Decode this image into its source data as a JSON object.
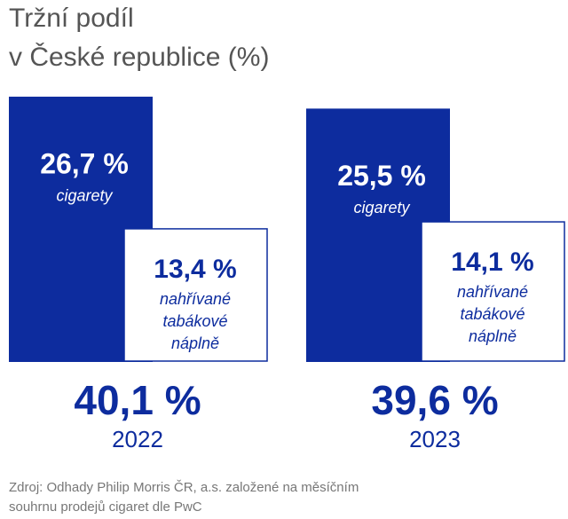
{
  "chart_data": {
    "type": "block",
    "title": [
      "Tržní podíl",
      "v České republice (%)"
    ],
    "categories": [
      "2022",
      "2023"
    ],
    "series": [
      {
        "name": "cigarety",
        "color": "#0d2c9e",
        "values": [
          26.7,
          25.5
        ],
        "value_labels": [
          "26,7 %",
          "25,5 %"
        ]
      },
      {
        "name": "nahřívané tabákové náplně",
        "color": "#ffffff",
        "values": [
          13.4,
          14.1
        ],
        "value_labels": [
          "13,4 %",
          "14,1 %"
        ]
      }
    ],
    "totals": {
      "values": [
        40.1,
        39.6
      ],
      "value_labels": [
        "40,1 %",
        "39,6 %"
      ]
    },
    "source": [
      "Zdroj: Odhady Philip Morris ČR, a.s. založené na měsíčním",
      "souhrnu prodejů cigaret dle PwC"
    ]
  }
}
